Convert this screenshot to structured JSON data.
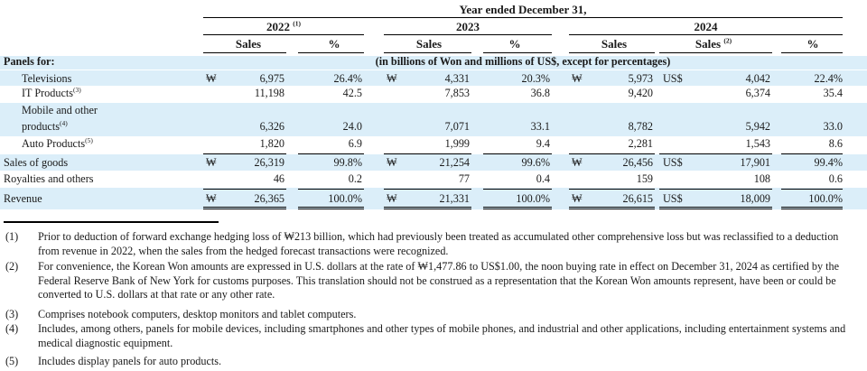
{
  "header": {
    "period": "Year ended December 31,",
    "years": [
      {
        "label": "2022",
        "note": "(1)"
      },
      {
        "label": "2023",
        "note": ""
      },
      {
        "label": "2024",
        "note": ""
      }
    ],
    "col_sales": "Sales",
    "col_pct": "%",
    "sales_2024_usd_note": "(2)",
    "section_label": "Panels for:",
    "units_note": "(in billions of Won and millions of US$, except for percentages)"
  },
  "rows": [
    {
      "label": "Televisions",
      "note": "",
      "cur1": "₩",
      "s2022": "6,975",
      "p2022": "26.4%",
      "cur2": "₩",
      "s2023": "4,331",
      "p2023": "20.3%",
      "cur3": "₩",
      "s2024w": "5,973",
      "cur4": "US$",
      "s2024u": "4,042",
      "p2024": "22.4%"
    },
    {
      "label": "IT Products",
      "note": "(3)",
      "cur1": "",
      "s2022": "11,198",
      "p2022": "42.5",
      "cur2": "",
      "s2023": "7,853",
      "p2023": "36.8",
      "cur3": "",
      "s2024w": "9,420",
      "cur4": "",
      "s2024u": "6,374",
      "p2024": "35.4"
    },
    {
      "label_line1": "Mobile and other",
      "label": "products",
      "note": "(4)",
      "cur1": "",
      "s2022": "6,326",
      "p2022": "24.0",
      "cur2": "",
      "s2023": "7,071",
      "p2023": "33.1",
      "cur3": "",
      "s2024w": "8,782",
      "cur4": "",
      "s2024u": "5,942",
      "p2024": "33.0"
    },
    {
      "label": "Auto Products",
      "note": "(5)",
      "cur1": "",
      "s2022": "1,820",
      "p2022": "6.9",
      "cur2": "",
      "s2023": "1,999",
      "p2023": "9.4",
      "cur3": "",
      "s2024w": "2,281",
      "cur4": "",
      "s2024u": "1,543",
      "p2024": "8.6"
    },
    {
      "label": "Sales of goods",
      "note": "",
      "cur1": "₩",
      "s2022": "26,319",
      "p2022": "99.8%",
      "cur2": "₩",
      "s2023": "21,254",
      "p2023": "99.6%",
      "cur3": "₩",
      "s2024w": "26,456",
      "cur4": "US$",
      "s2024u": "17,901",
      "p2024": "99.4%"
    },
    {
      "label": "Royalties and others",
      "note": "",
      "cur1": "",
      "s2022": "46",
      "p2022": "0.2",
      "cur2": "",
      "s2023": "77",
      "p2023": "0.4",
      "cur3": "",
      "s2024w": "159",
      "cur4": "",
      "s2024u": "108",
      "p2024": "0.6"
    },
    {
      "label": "Revenue",
      "note": "",
      "cur1": "₩",
      "s2022": "26,365",
      "p2022": "100.0%",
      "cur2": "₩",
      "s2023": "21,331",
      "p2023": "100.0%",
      "cur3": "₩",
      "s2024w": "26,615",
      "cur4": "US$",
      "s2024u": "18,009",
      "p2024": "100.0%"
    }
  ],
  "footnotes": [
    {
      "num": "(1)",
      "text": "Prior to deduction of forward exchange hedging loss of ₩213 billion, which had previously been treated as accumulated other comprehensive loss but was reclassified to a deduction from revenue in 2022, when the sales from the hedged forecast transactions were recognized."
    },
    {
      "num": "(2)",
      "text": "For convenience, the Korean Won amounts are expressed in U.S. dollars at the rate of ₩1,477.86 to US$1.00, the noon buying rate in effect on December 31, 2024 as certified by the Federal Reserve Bank of New York for customs purposes. This translation should not be construed as a representation that the Korean Won amounts represent, have been or could be converted to U.S. dollars at that rate or any other rate."
    },
    {
      "num": "(3)",
      "text": "Comprises notebook computers, desktop monitors and tablet computers."
    },
    {
      "num": "(4)",
      "text": "Includes, among others, panels for mobile devices, including smartphones and other types of mobile phones, and industrial and other applications, including entertainment systems and medical diagnostic equipment."
    },
    {
      "num": "(5)",
      "text": "Includes display panels for auto products."
    }
  ]
}
